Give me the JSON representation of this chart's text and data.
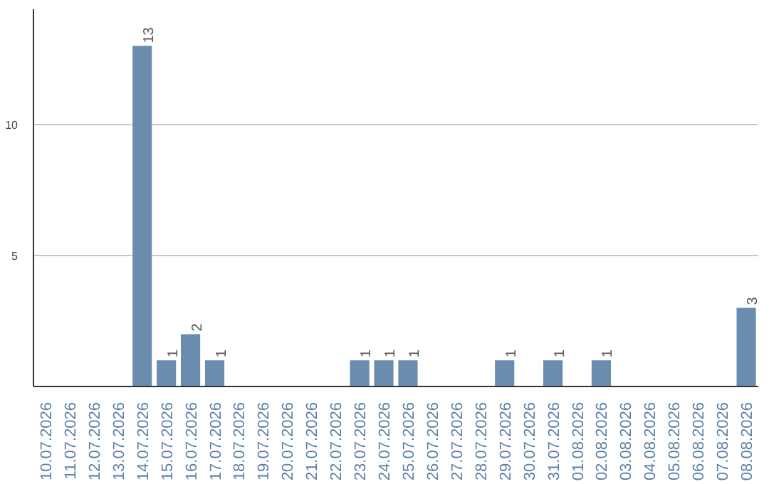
{
  "chart_data": {
    "type": "bar",
    "categories": [
      "10.07.2026",
      "11.07.2026",
      "12.07.2026",
      "13.07.2026",
      "14.07.2026",
      "15.07.2026",
      "16.07.2026",
      "17.07.2026",
      "18.07.2026",
      "19.07.2026",
      "20.07.2026",
      "21.07.2026",
      "22.07.2026",
      "23.07.2026",
      "24.07.2026",
      "25.07.2026",
      "26.07.2026",
      "27.07.2026",
      "28.07.2026",
      "29.07.2026",
      "30.07.2026",
      "31.07.2026",
      "01.08.2026",
      "02.08.2026",
      "03.08.2026",
      "04.08.2026",
      "05.08.2026",
      "06.08.2026",
      "07.08.2026",
      "08.08.2026"
    ],
    "values": [
      0,
      0,
      0,
      0,
      13,
      1,
      2,
      1,
      0,
      0,
      0,
      0,
      0,
      1,
      1,
      1,
      0,
      0,
      0,
      1,
      0,
      1,
      0,
      1,
      0,
      0,
      0,
      0,
      0,
      3
    ],
    "value_labels": [
      null,
      null,
      null,
      null,
      "13",
      "1",
      "2",
      "1",
      null,
      null,
      null,
      null,
      null,
      "1",
      "1",
      "1",
      null,
      null,
      null,
      "1",
      null,
      "1",
      null,
      "1",
      null,
      null,
      null,
      null,
      null,
      "3"
    ],
    "color": "#6a8caf",
    "ylim": [
      0,
      14.4
    ],
    "yticks": [
      5,
      10
    ],
    "grid": "y"
  }
}
